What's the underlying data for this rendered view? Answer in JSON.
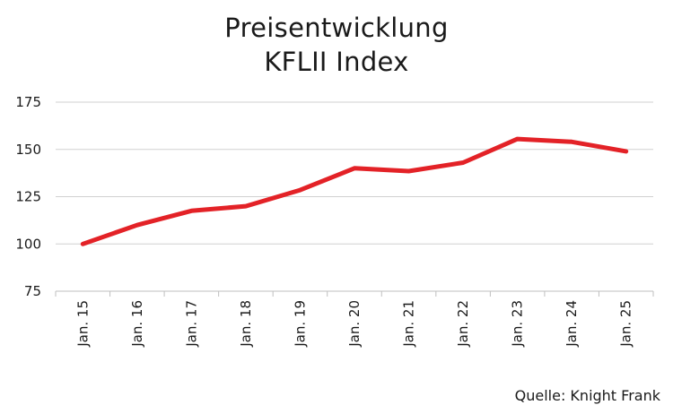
{
  "chart_data": {
    "type": "line",
    "title": [
      "Preisentwicklung",
      "KFLII Index"
    ],
    "categories": [
      "Jan. 15",
      "Jan. 16",
      "Jan. 17",
      "Jan. 18",
      "Jan. 19",
      "Jan. 20",
      "Jan. 21",
      "Jan. 22",
      "Jan. 23",
      "Jan. 24",
      "Jan. 25"
    ],
    "series": [
      {
        "values": [
          100,
          110,
          117.5,
          120,
          128.5,
          140,
          138.5,
          143,
          155.5,
          154,
          149
        ],
        "color": "#e32227"
      }
    ],
    "ylim": [
      75,
      175
    ],
    "yticks": [
      75,
      100,
      125,
      150,
      175
    ],
    "grid": true,
    "source": "Quelle: Knight Frank"
  }
}
